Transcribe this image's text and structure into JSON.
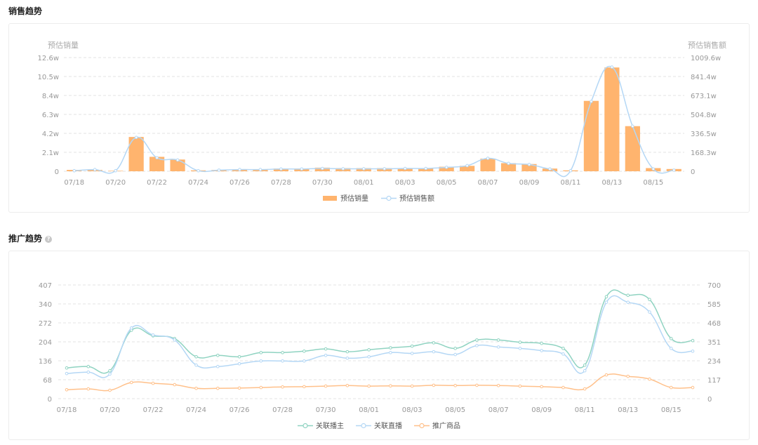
{
  "sales_section": {
    "title": "销售趋势"
  },
  "promo_section": {
    "title": "推广趋势",
    "help_icon": "question-circle-icon"
  },
  "colors": {
    "bar": "#ffb46e",
    "sales_line": "#b4d7f5",
    "anchor_line": "#8fd3c1",
    "live_line": "#b4d7f5",
    "product_line": "#ffc08a",
    "axis_text": "#999999",
    "grid": "#e3e3e3"
  },
  "chart_data": [
    {
      "type": "bar",
      "title": "",
      "ylabel_left": "预估销量",
      "ylabel_right": "预估销售额",
      "y_ticks_left": [
        "0",
        "2.1w",
        "4.2w",
        "6.3w",
        "8.4w",
        "10.5w",
        "12.6w"
      ],
      "y_ticks_right": [
        "0",
        "168.3w",
        "336.5w",
        "504.8w",
        "673.1w",
        "841.4w",
        "1009.6w"
      ],
      "ylim_left": [
        0,
        12.6
      ],
      "ylim_right": [
        0,
        1009.6
      ],
      "categories": [
        "07/18",
        "07/19",
        "07/20",
        "07/21",
        "07/22",
        "07/23",
        "07/24",
        "07/25",
        "07/26",
        "07/27",
        "07/28",
        "07/29",
        "07/30",
        "07/31",
        "08/01",
        "08/02",
        "08/03",
        "08/04",
        "08/05",
        "08/06",
        "08/07",
        "08/08",
        "08/09",
        "08/10",
        "08/11",
        "08/12",
        "08/13",
        "08/14",
        "08/15",
        "08/16"
      ],
      "x_tick_labels": [
        "07/18",
        "07/20",
        "07/22",
        "07/24",
        "07/26",
        "07/28",
        "07/30",
        "08/01",
        "08/03",
        "08/05",
        "08/07",
        "08/09",
        "08/11",
        "08/13",
        "08/15"
      ],
      "series": [
        {
          "name": "预估销量",
          "kind": "bar",
          "axis": "left",
          "values": [
            0.15,
            0.15,
            0.05,
            3.8,
            1.6,
            1.3,
            0.1,
            0.15,
            0.2,
            0.2,
            0.3,
            0.3,
            0.4,
            0.35,
            0.35,
            0.35,
            0.35,
            0.35,
            0.5,
            0.6,
            1.4,
            0.9,
            0.8,
            0.3,
            0.1,
            7.8,
            11.5,
            5.0,
            0.35,
            0.25
          ]
        },
        {
          "name": "预估销售额",
          "kind": "line",
          "axis": "right",
          "values": [
            5,
            15,
            5,
            300,
            120,
            100,
            5,
            10,
            15,
            15,
            20,
            20,
            25,
            22,
            22,
            22,
            25,
            25,
            35,
            50,
            115,
            70,
            60,
            20,
            5,
            620,
            925,
            400,
            20,
            10
          ]
        }
      ],
      "legend": {
        "position": "bottom",
        "items": [
          "预估销量",
          "预估销售额"
        ]
      },
      "grid": true
    },
    {
      "type": "line",
      "title": "",
      "y_ticks_left": [
        "0",
        "68",
        "136",
        "204",
        "272",
        "340",
        "407"
      ],
      "y_ticks_right": [
        "0",
        "117",
        "234",
        "351",
        "468",
        "585",
        "700"
      ],
      "ylim_left": [
        0,
        407
      ],
      "ylim_right": [
        0,
        700
      ],
      "categories": [
        "07/18",
        "07/19",
        "07/20",
        "07/21",
        "07/22",
        "07/23",
        "07/24",
        "07/25",
        "07/26",
        "07/27",
        "07/28",
        "07/29",
        "07/30",
        "07/31",
        "08/01",
        "08/02",
        "08/03",
        "08/04",
        "08/05",
        "08/06",
        "08/07",
        "08/08",
        "08/09",
        "08/10",
        "08/11",
        "08/12",
        "08/13",
        "08/14",
        "08/15",
        "08/16"
      ],
      "x_tick_labels": [
        "07/18",
        "07/20",
        "07/22",
        "07/24",
        "07/26",
        "07/28",
        "07/30",
        "08/01",
        "08/03",
        "08/05",
        "08/07",
        "08/09",
        "08/11",
        "08/13",
        "08/15"
      ],
      "series": [
        {
          "name": "关联播主",
          "axis": "left",
          "values": [
            110,
            115,
            100,
            245,
            225,
            215,
            150,
            155,
            150,
            165,
            165,
            170,
            178,
            168,
            175,
            182,
            188,
            200,
            180,
            210,
            210,
            202,
            198,
            180,
            120,
            365,
            370,
            355,
            215,
            208
          ]
        },
        {
          "name": "关联直播",
          "axis": "left",
          "values": [
            90,
            95,
            88,
            253,
            228,
            210,
            120,
            115,
            125,
            135,
            135,
            135,
            155,
            145,
            150,
            165,
            162,
            168,
            158,
            190,
            185,
            180,
            172,
            160,
            100,
            345,
            345,
            310,
            180,
            170
          ]
        },
        {
          "name": "推广商品",
          "axis": "left",
          "values": [
            32,
            35,
            30,
            58,
            55,
            50,
            37,
            37,
            38,
            40,
            42,
            43,
            45,
            47,
            45,
            46,
            45,
            48,
            47,
            48,
            47,
            45,
            43,
            40,
            35,
            85,
            80,
            70,
            40,
            40
          ]
        }
      ],
      "legend": {
        "position": "bottom",
        "items": [
          "关联播主",
          "关联直播",
          "推广商品"
        ]
      },
      "grid": true
    }
  ]
}
